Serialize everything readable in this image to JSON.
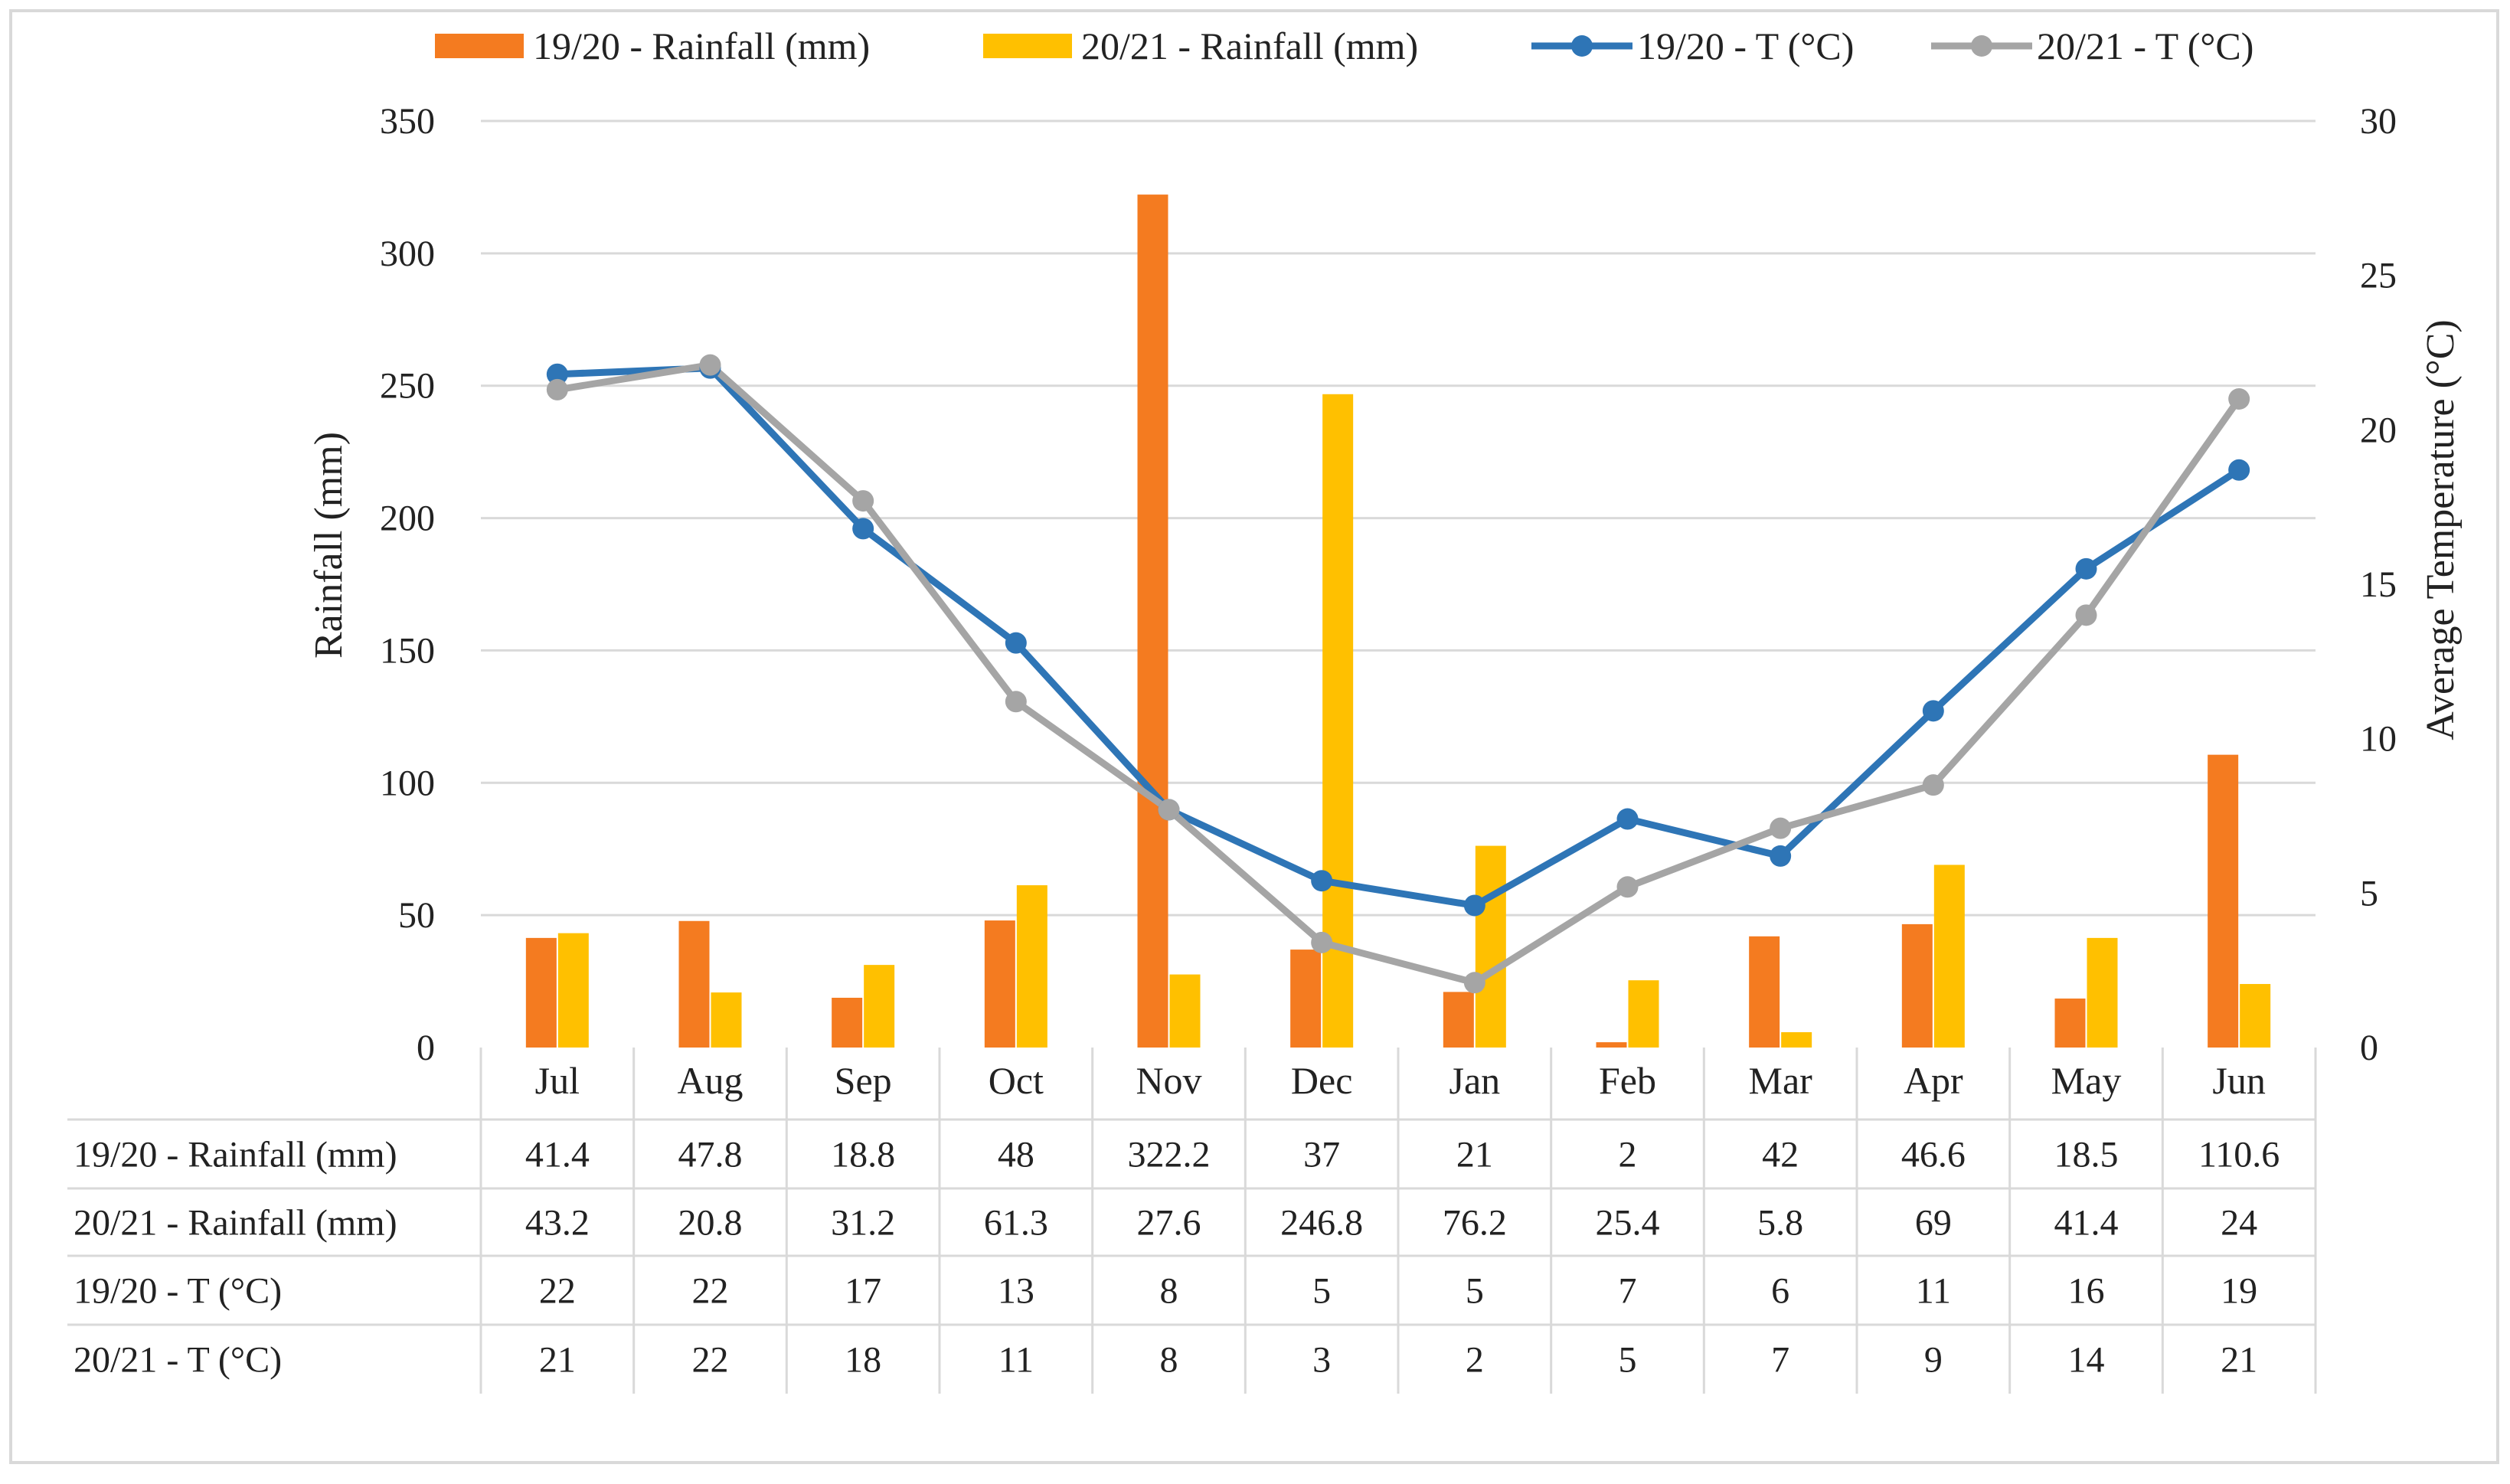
{
  "chart_data": {
    "type": "bar+line",
    "categories": [
      "Jul",
      "Aug",
      "Sep",
      "Oct",
      "Nov",
      "Dec",
      "Jan",
      "Feb",
      "Mar",
      "Apr",
      "May",
      "Jun"
    ],
    "bar_series": [
      {
        "name": "19/20 - Rainfall (mm)",
        "color": "#F47B20",
        "values": [
          41.4,
          47.8,
          18.8,
          48,
          322.2,
          37,
          21,
          2,
          42,
          46.6,
          18.5,
          110.6
        ]
      },
      {
        "name": "20/21 - Rainfall (mm)",
        "color": "#FFC000",
        "values": [
          43.2,
          20.8,
          31.2,
          61.3,
          27.6,
          246.8,
          76.2,
          25.4,
          5.8,
          69,
          41.4,
          24
        ]
      }
    ],
    "line_series": [
      {
        "name": "19/20 - T (°C)",
        "color": "#2E75B6",
        "values": [
          22,
          22,
          17,
          13,
          8,
          5,
          5,
          7,
          6,
          11,
          16,
          19
        ],
        "plotted": [
          21.8,
          22.0,
          16.8,
          13.1,
          7.7,
          5.4,
          4.6,
          7.4,
          6.2,
          10.9,
          15.5,
          18.7
        ]
      },
      {
        "name": "20/21 - T (°C)",
        "color": "#A5A5A5",
        "values": [
          21,
          22,
          18,
          11,
          8,
          3,
          2,
          5,
          7,
          9,
          14,
          21
        ],
        "plotted": [
          21.3,
          22.1,
          17.7,
          11.2,
          7.7,
          3.4,
          2.1,
          5.2,
          7.1,
          8.5,
          14.0,
          21.0
        ]
      }
    ],
    "y_left": {
      "label": "Rainfall (mm)",
      "min": 0,
      "max": 350,
      "step": 50,
      "ticks": [
        "0",
        "50",
        "100",
        "150",
        "200",
        "250",
        "300",
        "350"
      ]
    },
    "y_right": {
      "label": "Average Temperature (°C)",
      "min": 0,
      "max": 30,
      "step": 5,
      "ticks": [
        "0",
        "5",
        "10",
        "15",
        "20",
        "25",
        "30"
      ]
    },
    "legend_position": "top",
    "grid": true,
    "data_table": {
      "rows": [
        {
          "label": "19/20 - Rainfall (mm)",
          "cells": [
            "41.4",
            "47.8",
            "18.8",
            "48",
            "322.2",
            "37",
            "21",
            "2",
            "42",
            "46.6",
            "18.5",
            "110.6"
          ]
        },
        {
          "label": "20/21 - Rainfall (mm)",
          "cells": [
            "43.2",
            "20.8",
            "31.2",
            "61.3",
            "27.6",
            "246.8",
            "76.2",
            "25.4",
            "5.8",
            "69",
            "41.4",
            "24"
          ]
        },
        {
          "label": "19/20 - T (°C)",
          "cells": [
            "22",
            "22",
            "17",
            "13",
            "8",
            "5",
            "5",
            "7",
            "6",
            "11",
            "16",
            "19"
          ]
        },
        {
          "label": "20/21 - T (°C)",
          "cells": [
            "21",
            "22",
            "18",
            "11",
            "8",
            "3",
            "2",
            "5",
            "7",
            "9",
            "14",
            "21"
          ]
        }
      ]
    }
  }
}
